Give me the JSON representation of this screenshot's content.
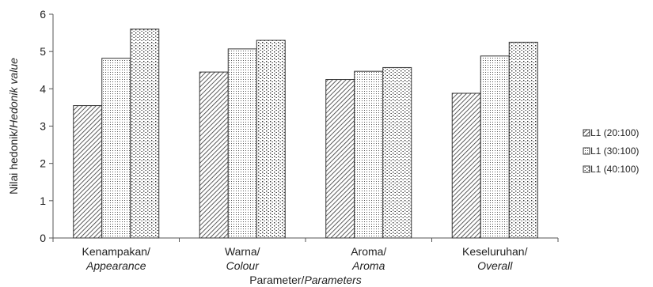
{
  "chart_data": {
    "type": "bar",
    "categories": [
      {
        "line1": "Kenampakan/",
        "line2": "Appearance"
      },
      {
        "line1": "Warna/",
        "line2": "Colour"
      },
      {
        "line1": "Aroma/",
        "line2": "Aroma"
      },
      {
        "line1": "Keseluruhan/",
        "line2": "Overall"
      }
    ],
    "series": [
      {
        "name": "L1  (20:100)",
        "pattern": "diagonal-hatch",
        "values": [
          3.55,
          4.45,
          4.25,
          3.88
        ]
      },
      {
        "name": "L1  (30:100)",
        "pattern": "fine-dots",
        "values": [
          4.82,
          5.07,
          4.47,
          4.88
        ]
      },
      {
        "name": "L1  (40:100)",
        "pattern": "coarse-dots",
        "values": [
          5.6,
          5.3,
          4.57,
          5.25
        ]
      }
    ],
    "ylabel": {
      "normal": "Nilai hedonik/",
      "italic": "Hedonik value"
    },
    "xlabel": {
      "normal": "Parameter/",
      "italic": "Parameters"
    },
    "ylim": [
      0,
      6
    ],
    "yticks": [
      0,
      1,
      2,
      3,
      4,
      5,
      6
    ],
    "grid": false,
    "legend_position": "right"
  }
}
